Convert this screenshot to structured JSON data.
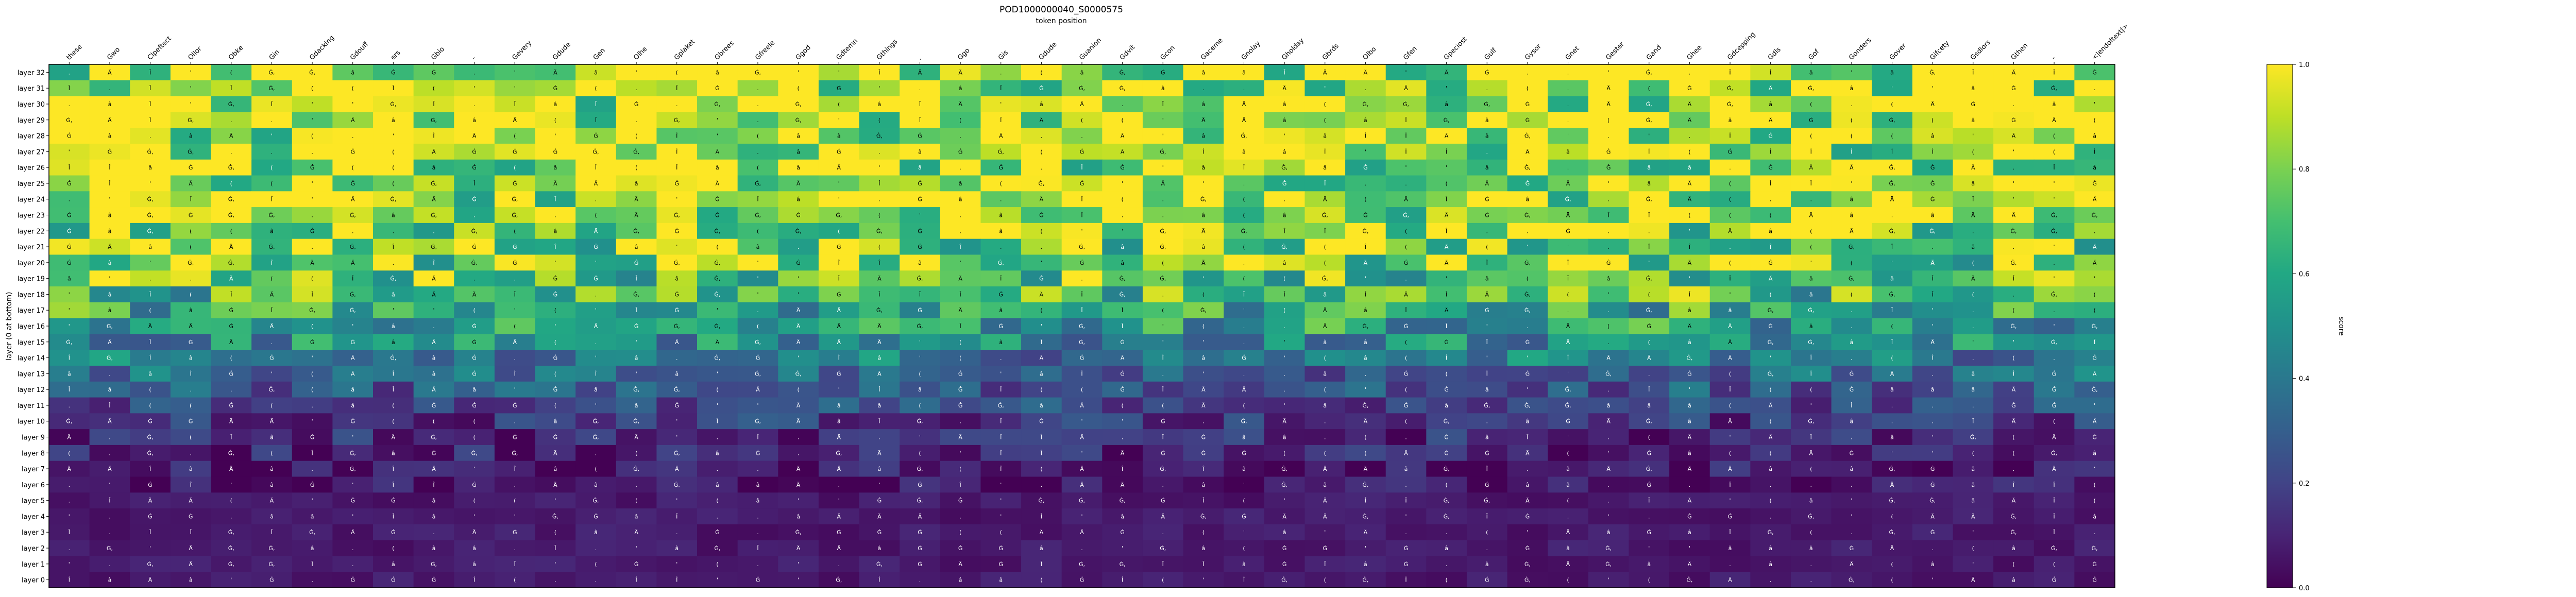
{
  "chart_data": {
    "type": "heatmap",
    "title": "POD1000000040_S0000575",
    "xlabel": "token position",
    "ylabel": "layer (0 at bottom)",
    "colorbar_label": "score",
    "colorbar_ticks": [
      "0.0",
      "0.2",
      "0.4",
      "0.6",
      "0.8",
      "1.0"
    ],
    "colormap": "viridis",
    "vmin": 0.0,
    "vmax": 1.0,
    "x_tokens": [
      "these",
      "Gwo",
      "Clpeftect",
      "Ollor",
      "Obke",
      "Gin",
      "Gdacking",
      "Gdouff",
      "ers",
      "Gbio",
      "-",
      "Gevery",
      "Gdude",
      "Gen",
      "Olhe",
      "Gplaket",
      "Gbrees",
      "Gfreele",
      "Ggod",
      "Gdtemn",
      "Gthings",
      ".",
      "Ggo",
      "Gis",
      "Gdude",
      "Guanion",
      "Gdvit",
      "Gcon",
      "Gaceme",
      "Gnolay",
      "Gholday",
      "Gbrds",
      "Olbo",
      "Gfen",
      "Gpeciost",
      "Gulf",
      "Gysor",
      "Gnet",
      "Gester",
      "Gand",
      "Ghee",
      "Gdcepping",
      "Gdls",
      "Gof",
      "Gonders",
      "Gover",
      "Gifcety",
      "Gsdlors",
      "Gthen",
      "-",
      "<|endoftext|>"
    ],
    "y_labels": [
      "layer 32",
      "layer 31",
      "layer 30",
      "layer 29",
      "layer 28",
      "layer 27",
      "layer 26",
      "layer 25",
      "layer 24",
      "layer 23",
      "layer 22",
      "layer 21",
      "layer 20",
      "layer 19",
      "layer 18",
      "layer 17",
      "layer 16",
      "layer 15",
      "layer 14",
      "layer 13",
      "layer 12",
      "layer 11",
      "layer 10",
      "layer 9",
      "layer 8",
      "layer 7",
      "layer 6",
      "layer 5",
      "layer 4",
      "layer 3",
      "layer 2",
      "layer 1",
      "layer 0"
    ],
    "cell_symbols": [
      ".",
      "Ġ",
      "Ä",
      "â",
      "Ġ,",
      "'",
      "Î",
      "("
    ],
    "approx_pattern": "scores near 0 at layers 0-6, rising through middle layers, near 1 at layers 21-32"
  }
}
